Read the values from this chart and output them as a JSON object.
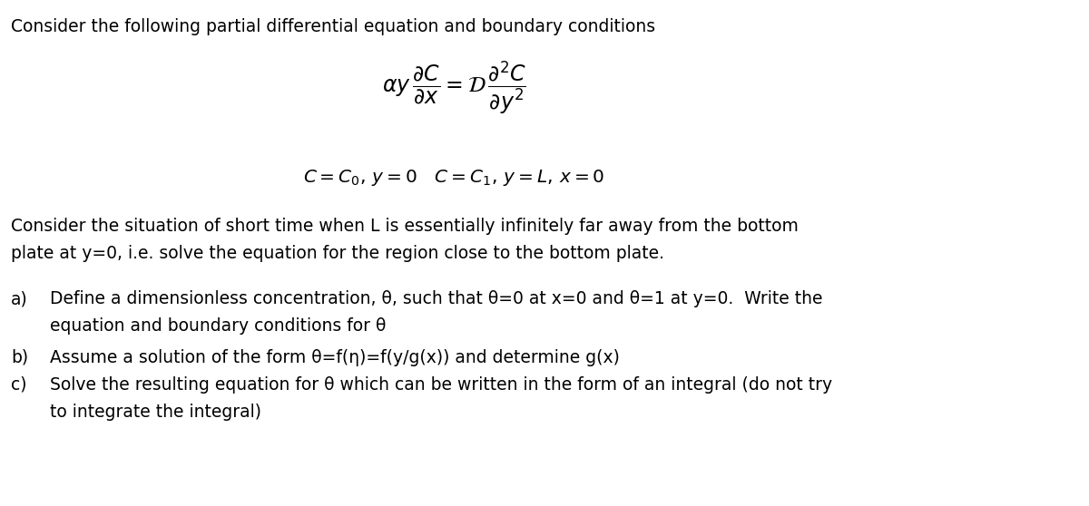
{
  "title_text": "Consider the following partial differential equation and boundary conditions",
  "para_line1": "Consider the situation of short time when L is essentially infinitely far away from the bottom",
  "para_line2": "plate at y=0, i.e. solve the equation for the region close to the bottom plate.",
  "item_a_line1": "Define a dimensionless concentration, θ, such that θ=0 at x=0 and θ=1 at y=0.  Write the",
  "item_a_line2": "equation and boundary conditions for θ",
  "item_b": "Assume a solution of the form θ=f(η)=f(y/g(x)) and determine g(x)",
  "item_c_line1": "Solve the resulting equation for θ which can be written in the form of an integral (do not try",
  "item_c_line2": "to integrate the integral)",
  "bg_color": "#ffffff",
  "text_color": "#000000",
  "font_size": 13.5,
  "eq_font_size": 17,
  "label_a": "a)",
  "label_b": "b)",
  "label_c": "c)"
}
